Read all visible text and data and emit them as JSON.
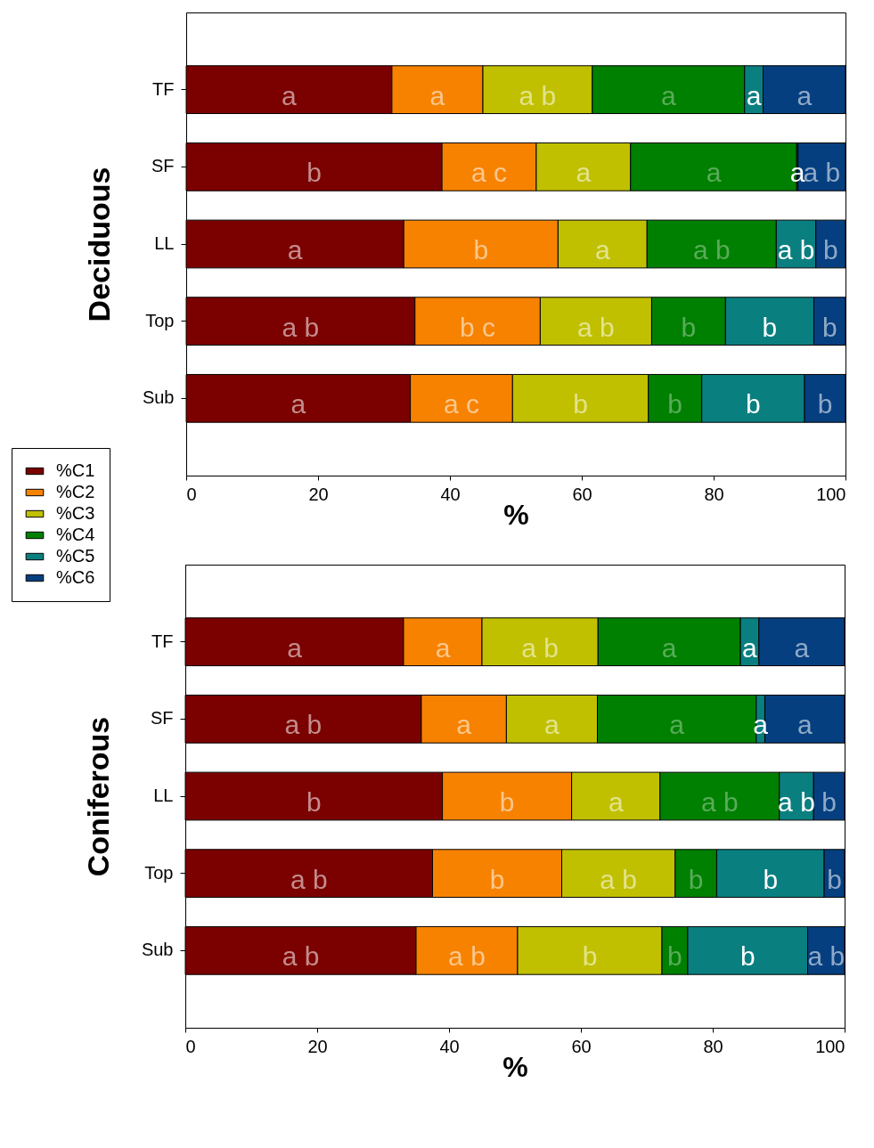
{
  "chart_data": [
    {
      "type": "bar",
      "orientation": "horizontal",
      "stacked": true,
      "ylabel": "Deciduous",
      "xlabel": "%",
      "categories": [
        "TF",
        "SF",
        "LL",
        "Top",
        "Sub"
      ],
      "xlim": [
        0,
        100
      ],
      "xticks": [
        0,
        20,
        40,
        60,
        80,
        100
      ],
      "legend": "bottom left",
      "series": [
        {
          "name": "%C1",
          "color": "#7b0000",
          "values": [
            31.2,
            38.8,
            33.0,
            34.7,
            34.0
          ],
          "value_labels": [
            "a",
            "b",
            "a",
            "a b",
            "a"
          ]
        },
        {
          "name": "%C2",
          "color": "#f78200",
          "values": [
            13.8,
            14.3,
            23.4,
            19.0,
            15.5
          ],
          "value_labels": [
            "a",
            "a c",
            "b",
            "b c",
            "a c"
          ]
        },
        {
          "name": "%C3",
          "color": "#c0c000",
          "values": [
            16.6,
            14.3,
            13.5,
            16.9,
            20.6
          ],
          "value_labels": [
            "a b",
            "a",
            "a",
            "a b",
            "b"
          ]
        },
        {
          "name": "%C4",
          "color": "#008000",
          "values": [
            23.1,
            25.2,
            19.6,
            11.2,
            8.1
          ],
          "value_labels": [
            "a",
            "a",
            "a b",
            "b",
            "b"
          ]
        },
        {
          "name": "%C5",
          "color": "#0a7f80",
          "values": [
            2.8,
            0.2,
            6.0,
            13.4,
            15.6
          ],
          "value_labels": [
            "a",
            "a",
            "a b",
            "b",
            "b"
          ]
        },
        {
          "name": "%C6",
          "color": "#053f80",
          "values": [
            12.5,
            7.2,
            4.5,
            4.8,
            6.2
          ],
          "value_labels": [
            "a",
            "a b",
            "b",
            "b",
            "b"
          ]
        }
      ]
    },
    {
      "type": "bar",
      "orientation": "horizontal",
      "stacked": true,
      "ylabel": "Coniferous",
      "xlabel": "%",
      "categories": [
        "TF",
        "SF",
        "LL",
        "Top",
        "Sub"
      ],
      "xlim": [
        0,
        100
      ],
      "xticks": [
        0,
        20,
        40,
        60,
        80,
        100
      ],
      "series": [
        {
          "color": "#7b0000",
          "values": [
            33.1,
            35.8,
            39.0,
            37.5,
            35.0
          ],
          "value_labels": [
            "a",
            "a b",
            "b",
            "a b",
            "a b"
          ]
        },
        {
          "color": "#f78200",
          "values": [
            11.9,
            12.9,
            19.6,
            19.6,
            15.4
          ],
          "value_labels": [
            "a",
            "a",
            "b",
            "b",
            "a b"
          ]
        },
        {
          "color": "#c0c000",
          "values": [
            17.6,
            13.8,
            13.4,
            17.2,
            21.9
          ],
          "value_labels": [
            "a b",
            "a",
            "a",
            "a b",
            "b"
          ]
        },
        {
          "color": "#008000",
          "values": [
            21.6,
            24.1,
            18.1,
            6.3,
            3.9
          ],
          "value_labels": [
            "a",
            "a",
            "a b",
            "b",
            "b"
          ]
        },
        {
          "color": "#0a7f80",
          "values": [
            2.8,
            1.3,
            5.2,
            16.3,
            18.2
          ],
          "value_labels": [
            "a",
            "a",
            "a b",
            "b",
            "b"
          ]
        },
        {
          "color": "#053f80",
          "values": [
            13.0,
            12.1,
            4.7,
            3.1,
            5.6
          ],
          "value_labels": [
            "a",
            "a",
            "b",
            "b",
            "a b"
          ]
        }
      ]
    }
  ]
}
